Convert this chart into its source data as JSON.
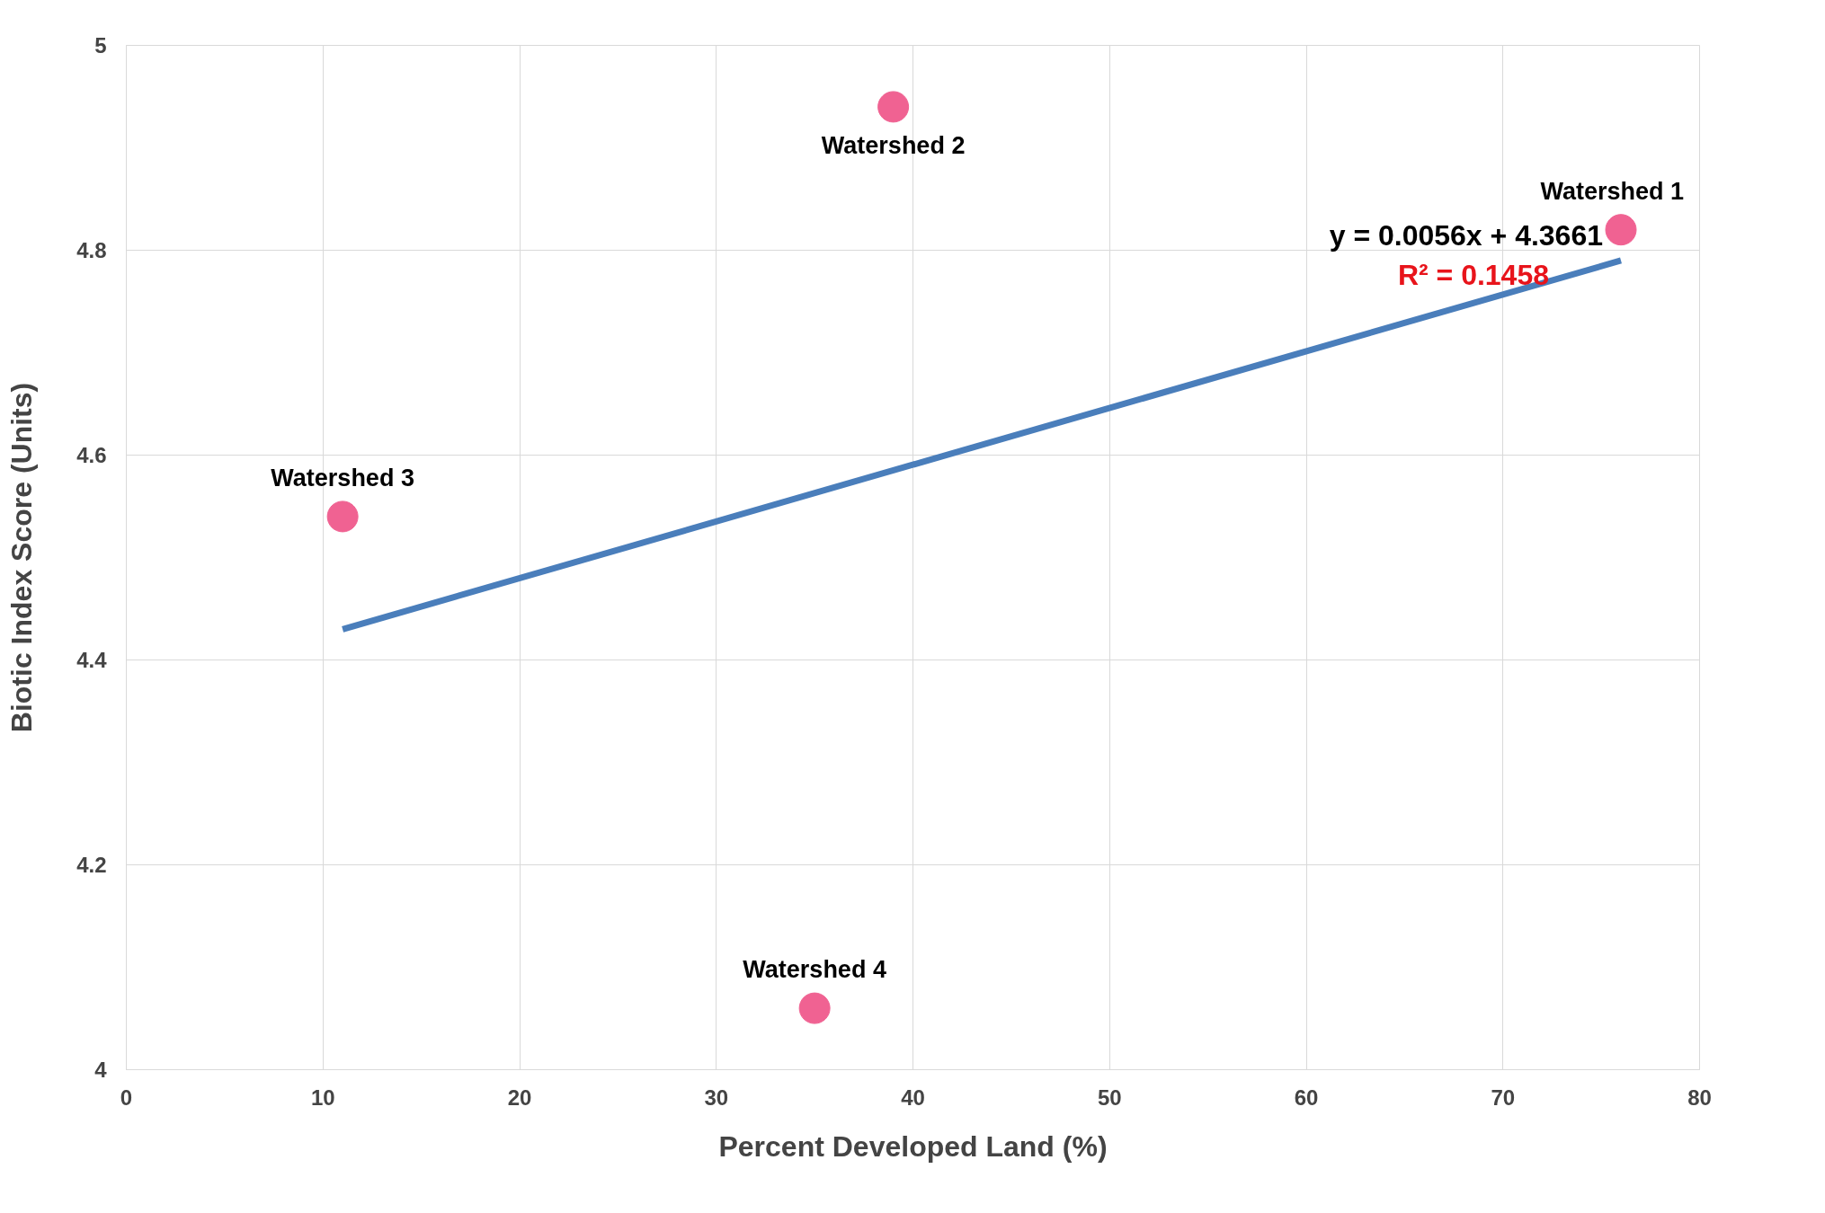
{
  "chart_data": {
    "type": "scatter",
    "xlabel": "Percent Developed Land (%)",
    "ylabel": "Biotic Index Score (Units)",
    "xlim": [
      0,
      80
    ],
    "ylim": [
      4,
      5
    ],
    "xticks": [
      0,
      10,
      20,
      30,
      40,
      50,
      60,
      70,
      80
    ],
    "yticks": [
      4,
      4.2,
      4.4,
      4.6,
      4.8,
      5
    ],
    "grid": true,
    "marker": "circle",
    "x": [
      76,
      39,
      11,
      35
    ],
    "series": [
      {
        "color": "#f06292",
        "values": [
          4.82,
          4.94,
          4.54,
          4.06
        ]
      },
      {
        "type": "line",
        "color": "#4a7ebb",
        "x": [
          11,
          76
        ],
        "values": [
          4.43,
          4.79
        ],
        "marker": "none"
      }
    ],
    "annotations": [
      {
        "text": "Watershed 1",
        "x": 76,
        "y": 4.82
      },
      {
        "text": "Watershed 2",
        "x": 39,
        "y": 4.94
      },
      {
        "text": "Watershed 3",
        "x": 11,
        "y": 4.54
      },
      {
        "text": "Watershed 4",
        "x": 35,
        "y": 4.06
      },
      "y = 0.0056x + 4.3661",
      "R² = 0.1458"
    ]
  }
}
